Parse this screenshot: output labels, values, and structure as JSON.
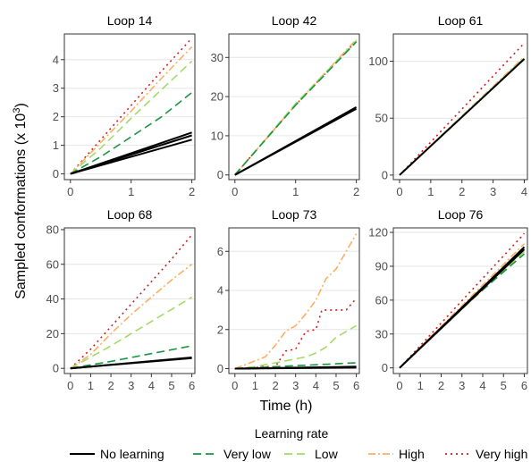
{
  "figure": {
    "ylabel_main": "Sampled conformations (x 10",
    "ylabel_exp": "3",
    "ylabel_close": ")",
    "xlabel": "Time (h)",
    "legend_title": "Learning rate"
  },
  "legend": [
    {
      "key": "none",
      "label": "No learning"
    },
    {
      "key": "vlow",
      "label": "Very low"
    },
    {
      "key": "low",
      "label": "Low"
    },
    {
      "key": "high",
      "label": "High"
    },
    {
      "key": "vhigh",
      "label": "Very high"
    }
  ],
  "series_styles": {
    "none": {
      "color": "#000000",
      "dash": ""
    },
    "vlow": {
      "color": "#1a9641",
      "dash": "9,5"
    },
    "low": {
      "color": "#a6d96a",
      "dash": "9,5"
    },
    "high": {
      "color": "#fdae61",
      "dash": "8,3,2,3"
    },
    "vhigh": {
      "color": "#d7191c",
      "dash": "2,4"
    }
  },
  "chart_data": [
    {
      "type": "line",
      "title": "Loop 14",
      "xlim": [
        -0.1,
        2.05
      ],
      "ylim": [
        -0.2,
        4.9
      ],
      "xticks": [
        0,
        1,
        2
      ],
      "yticks": [
        0,
        1,
        2,
        3,
        4
      ],
      "series": [
        {
          "name": "No learning",
          "key": "none",
          "x": [
            0,
            2
          ],
          "y": [
            0,
            1.45
          ]
        },
        {
          "key": "none",
          "x": [
            0,
            2
          ],
          "y": [
            0,
            1.35
          ]
        },
        {
          "key": "none",
          "x": [
            0,
            2
          ],
          "y": [
            0,
            1.2
          ]
        },
        {
          "name": "Very low",
          "key": "vlow",
          "x": [
            0,
            0.5,
            1,
            1.5,
            2
          ],
          "y": [
            0,
            0.6,
            1.3,
            2.0,
            2.85
          ]
        },
        {
          "name": "Low",
          "key": "low",
          "x": [
            0,
            0.5,
            1,
            1.5,
            2
          ],
          "y": [
            0,
            0.9,
            1.95,
            2.95,
            3.95
          ]
        },
        {
          "name": "High",
          "key": "high",
          "x": [
            0,
            0.5,
            1,
            1.5,
            2
          ],
          "y": [
            0,
            1.1,
            2.2,
            3.35,
            4.45
          ]
        },
        {
          "name": "Very high",
          "key": "vhigh",
          "x": [
            0,
            0.5,
            1,
            1.5,
            2
          ],
          "y": [
            0,
            1.2,
            2.4,
            3.6,
            4.75
          ]
        }
      ]
    },
    {
      "type": "line",
      "title": "Loop 42",
      "xlim": [
        -0.1,
        2.05
      ],
      "ylim": [
        -1.2,
        36
      ],
      "xticks": [
        0,
        1,
        2
      ],
      "yticks": [
        0,
        10,
        20,
        30
      ],
      "series": [
        {
          "name": "No learning",
          "key": "none",
          "x": [
            0,
            2
          ],
          "y": [
            0,
            17.3
          ]
        },
        {
          "key": "none",
          "x": [
            0,
            2
          ],
          "y": [
            0,
            16.9
          ]
        },
        {
          "name": "Very low",
          "key": "vlow",
          "x": [
            0,
            1,
            2
          ],
          "y": [
            0,
            17.8,
            34.0
          ]
        },
        {
          "name": "Low",
          "key": "low",
          "x": [
            0,
            1,
            2
          ],
          "y": [
            0,
            18.2,
            34.3
          ]
        },
        {
          "name": "High",
          "key": "high",
          "x": [
            0,
            1,
            2
          ],
          "y": [
            0,
            18.0,
            34.6
          ]
        },
        {
          "name": "Very high",
          "key": "vhigh",
          "x": [
            0,
            1,
            2
          ],
          "y": [
            0,
            17.9,
            34.2
          ]
        }
      ]
    },
    {
      "type": "line",
      "title": "Loop 61",
      "xlim": [
        -0.2,
        4.1
      ],
      "ylim": [
        -4,
        124
      ],
      "xticks": [
        0,
        1,
        2,
        3,
        4
      ],
      "yticks": [
        0,
        50,
        100
      ],
      "series": [
        {
          "name": "No learning",
          "key": "none",
          "x": [
            0,
            4
          ],
          "y": [
            0,
            102
          ]
        },
        {
          "name": "Very low",
          "key": "vlow",
          "x": [
            0,
            4
          ],
          "y": [
            0,
            102
          ]
        },
        {
          "name": "Low",
          "key": "low",
          "x": [
            0,
            4
          ],
          "y": [
            0,
            103
          ]
        },
        {
          "name": "High",
          "key": "high",
          "x": [
            0,
            4
          ],
          "y": [
            0,
            104
          ]
        },
        {
          "name": "Very high",
          "key": "vhigh",
          "x": [
            0,
            4
          ],
          "y": [
            0,
            116
          ]
        }
      ]
    },
    {
      "type": "line",
      "title": "Loop 68",
      "xlim": [
        -0.3,
        6.15
      ],
      "ylim": [
        -3,
        81
      ],
      "xticks": [
        0,
        1,
        2,
        3,
        4,
        5,
        6
      ],
      "yticks": [
        0,
        20,
        40,
        60,
        80
      ],
      "series": [
        {
          "name": "No learning",
          "key": "none",
          "x": [
            0,
            6
          ],
          "y": [
            0,
            6.3
          ]
        },
        {
          "key": "none",
          "x": [
            0,
            6
          ],
          "y": [
            0,
            5.9
          ]
        },
        {
          "name": "Very low",
          "key": "vlow",
          "x": [
            0,
            2,
            4,
            6
          ],
          "y": [
            0,
            4,
            8.5,
            13
          ]
        },
        {
          "name": "Low",
          "key": "low",
          "x": [
            0,
            2,
            4,
            6
          ],
          "y": [
            0,
            13,
            27,
            41
          ]
        },
        {
          "name": "High",
          "key": "high",
          "x": [
            0,
            1,
            2,
            3,
            4,
            5,
            6
          ],
          "y": [
            0,
            8,
            20,
            31,
            41,
            51,
            60
          ]
        },
        {
          "name": "Very high",
          "key": "vhigh",
          "x": [
            0,
            1,
            2,
            3,
            4,
            5,
            6
          ],
          "y": [
            0,
            11,
            24,
            37,
            50,
            63,
            77
          ]
        }
      ]
    },
    {
      "type": "line",
      "title": "Loop 73",
      "xlim": [
        -0.3,
        6.15
      ],
      "ylim": [
        -0.25,
        7.2
      ],
      "xticks": [
        0,
        1,
        2,
        3,
        4,
        5,
        6
      ],
      "yticks": [
        0,
        2,
        4,
        6
      ],
      "series": [
        {
          "name": "No learning",
          "key": "none",
          "x": [
            0,
            6
          ],
          "y": [
            0,
            0.1
          ]
        },
        {
          "key": "none",
          "x": [
            0,
            6
          ],
          "y": [
            0,
            0.05
          ]
        },
        {
          "name": "Very low",
          "key": "vlow",
          "x": [
            0,
            1,
            2,
            3,
            4,
            5,
            6
          ],
          "y": [
            0,
            0.05,
            0.1,
            0.15,
            0.2,
            0.25,
            0.3
          ]
        },
        {
          "name": "Low",
          "key": "low",
          "x": [
            0,
            1,
            2,
            3,
            3.5,
            4,
            4.5,
            5,
            5.5,
            6
          ],
          "y": [
            0,
            0.1,
            0.3,
            0.5,
            0.6,
            0.8,
            1.1,
            1.6,
            1.9,
            2.2
          ]
        },
        {
          "name": "High",
          "key": "high",
          "x": [
            0,
            0.5,
            1,
            1.5,
            2,
            2.5,
            3,
            3.5,
            4,
            4.5,
            5,
            5.5,
            6
          ],
          "y": [
            0,
            0.2,
            0.4,
            0.6,
            1.2,
            1.9,
            2.2,
            2.8,
            3.5,
            4.6,
            5.1,
            6.0,
            6.9
          ]
        },
        {
          "name": "Very high",
          "key": "vhigh",
          "x": [
            0,
            1,
            1.3,
            2,
            2.5,
            3,
            3.5,
            4,
            4.3,
            5,
            5.5,
            6
          ],
          "y": [
            0,
            0.05,
            0.1,
            0.1,
            0.9,
            1.0,
            1.9,
            2.0,
            3.0,
            3.0,
            3.0,
            3.6
          ]
        }
      ]
    },
    {
      "type": "line",
      "title": "Loop 76",
      "xlim": [
        -0.3,
        6.15
      ],
      "ylim": [
        -5,
        124
      ],
      "xticks": [
        0,
        1,
        2,
        3,
        4,
        5,
        6
      ],
      "yticks": [
        0,
        30,
        60,
        90,
        120
      ],
      "series": [
        {
          "name": "No learning",
          "key": "none",
          "x": [
            0,
            6
          ],
          "y": [
            0,
            107
          ]
        },
        {
          "key": "none",
          "x": [
            0,
            6
          ],
          "y": [
            0,
            105
          ]
        },
        {
          "name": "Very low",
          "key": "vlow",
          "x": [
            0,
            3,
            6
          ],
          "y": [
            0,
            53,
            101
          ]
        },
        {
          "name": "Low",
          "key": "low",
          "x": [
            0,
            3,
            6
          ],
          "y": [
            0,
            52,
            103
          ]
        },
        {
          "name": "High",
          "key": "high",
          "x": [
            0,
            6
          ],
          "y": [
            0,
            110
          ]
        },
        {
          "name": "Very high",
          "key": "vhigh",
          "x": [
            0,
            6
          ],
          "y": [
            0,
            119
          ]
        }
      ]
    }
  ]
}
